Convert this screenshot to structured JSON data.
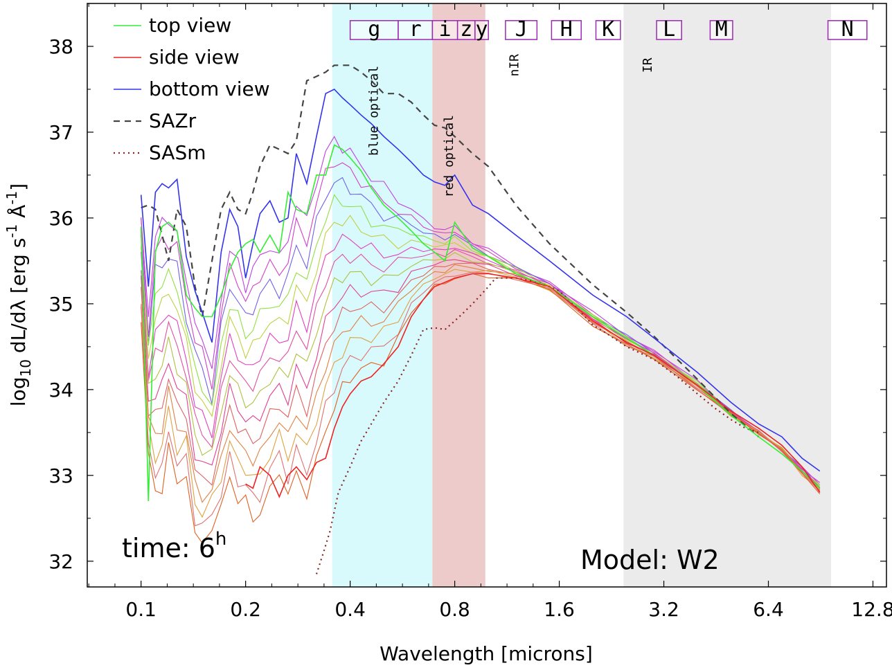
{
  "chart_data": {
    "type": "line",
    "title": "",
    "xlabel": "Wavelength [microns]",
    "ylabel": "log10 dL/dλ [erg s-1 Å-1]",
    "ylabel_parts": {
      "log": "log",
      "sub10": "10",
      "main": " dL/dλ [erg s",
      "exp1": "-1",
      "mid": " Å",
      "exp2": "-1",
      "end": "]"
    },
    "xscale": "log2",
    "xlim": [
      0.07,
      14.0
    ],
    "ylim": [
      31.7,
      38.5
    ],
    "xticks": [
      {
        "value": 0.1,
        "label": "0.1"
      },
      {
        "value": 0.2,
        "label": "0.2"
      },
      {
        "value": 0.4,
        "label": "0.4"
      },
      {
        "value": 0.8,
        "label": "0.8"
      },
      {
        "value": 1.6,
        "label": "1.6"
      },
      {
        "value": 3.2,
        "label": "3.2"
      },
      {
        "value": 6.4,
        "label": "6.4"
      },
      {
        "value": 12.8,
        "label": "12.8"
      }
    ],
    "yticks": [
      {
        "value": 32,
        "label": "32"
      },
      {
        "value": 33,
        "label": "33"
      },
      {
        "value": 34,
        "label": "34"
      },
      {
        "value": 35,
        "label": "35"
      },
      {
        "value": 36,
        "label": "36"
      },
      {
        "value": 37,
        "label": "37"
      },
      {
        "value": 38,
        "label": "38"
      }
    ],
    "legend": {
      "placement": "top-left",
      "entries": [
        {
          "label": "top view",
          "color": "#33ee33",
          "style": "solid"
        },
        {
          "label": "side view",
          "color": "#ee2222",
          "style": "solid"
        },
        {
          "label": "bottom view",
          "color": "#3333ee",
          "style": "solid"
        },
        {
          "label": "SAZr",
          "color": "#444444",
          "style": "dashed"
        },
        {
          "label": "SASm",
          "color": "#882222",
          "style": "dotted"
        }
      ]
    },
    "regions": [
      {
        "name": "blue optical",
        "x0": 0.355,
        "x1": 0.69,
        "color": "#d8fafd"
      },
      {
        "name": "red optical",
        "x0": 0.69,
        "x1": 0.98,
        "color": "#eecbcb"
      },
      {
        "name": "IR",
        "x0": 2.45,
        "x1": 9.7,
        "color": "#ebebeb"
      }
    ],
    "region_labels": [
      {
        "text": "blue optical",
        "x": 0.48,
        "y": 37.25
      },
      {
        "text": "red optical",
        "x": 0.79,
        "y": 36.72
      },
      {
        "text": "nIR",
        "x": 1.22,
        "y": 37.78
      },
      {
        "text": "IR",
        "x": 2.95,
        "y": 37.78
      }
    ],
    "filter_bands": [
      {
        "name": "g",
        "x0": 0.4,
        "x1": 0.55
      },
      {
        "name": "r",
        "x0": 0.55,
        "x1": 0.69
      },
      {
        "name": "i",
        "x0": 0.69,
        "x1": 0.815
      },
      {
        "name": "z",
        "x0": 0.815,
        "x1": 0.915
      },
      {
        "name": "y",
        "x0": 0.915,
        "x1": 1.0
      },
      {
        "name": "J",
        "x0": 1.12,
        "x1": 1.38
      },
      {
        "name": "H",
        "x0": 1.52,
        "x1": 1.85
      },
      {
        "name": "K",
        "x0": 2.04,
        "x1": 2.4
      },
      {
        "name": "L",
        "x0": 3.05,
        "x1": 3.6
      },
      {
        "name": "M",
        "x0": 4.35,
        "x1": 5.05
      },
      {
        "name": "N",
        "x0": 9.5,
        "x1": 12.3
      }
    ],
    "annotations": [
      {
        "text": "time: 6",
        "sup": "h",
        "placement": "bottom-left"
      },
      {
        "text": "Model: W2",
        "placement": "bottom-right"
      }
    ],
    "series": [
      {
        "name": "SAZr",
        "color": "#444444",
        "style": "dashed",
        "x": [
          0.1,
          0.105,
          0.11,
          0.115,
          0.12,
          0.127,
          0.135,
          0.143,
          0.15,
          0.16,
          0.17,
          0.18,
          0.19,
          0.2,
          0.21,
          0.22,
          0.235,
          0.25,
          0.265,
          0.28,
          0.3,
          0.32,
          0.34,
          0.36,
          0.38,
          0.4,
          0.43,
          0.46,
          0.5,
          0.55,
          0.6,
          0.65,
          0.7,
          0.75,
          0.8,
          0.9,
          1.0,
          1.2,
          1.5,
          2.0,
          2.5,
          3.0,
          4.0,
          5.0,
          6.0
        ],
        "y": [
          36.12,
          36.15,
          36.1,
          35.8,
          35.5,
          36.1,
          35.9,
          35.2,
          34.85,
          35.5,
          36.1,
          36.3,
          36.1,
          36.05,
          36.3,
          36.6,
          36.85,
          36.8,
          36.75,
          36.9,
          37.6,
          37.65,
          37.7,
          37.78,
          37.78,
          37.78,
          37.7,
          37.6,
          37.45,
          37.45,
          37.35,
          37.2,
          37.08,
          37.05,
          36.95,
          36.75,
          36.6,
          36.15,
          35.7,
          35.22,
          34.9,
          34.62,
          34.12,
          33.72,
          33.45
        ]
      },
      {
        "name": "SASm",
        "color": "#882222",
        "style": "dotted",
        "x": [
          0.32,
          0.335,
          0.35,
          0.37,
          0.4,
          0.43,
          0.46,
          0.5,
          0.55,
          0.6,
          0.65,
          0.7,
          0.75,
          0.8,
          0.85,
          0.9,
          0.95,
          1.0,
          1.05,
          1.1,
          1.2,
          1.4,
          1.6,
          1.8,
          2.0,
          2.2,
          2.5,
          3.0,
          3.5,
          4.0,
          4.5,
          5.0,
          5.5,
          6.0
        ],
        "y": [
          31.85,
          32.1,
          32.35,
          32.8,
          33.1,
          33.4,
          33.6,
          33.85,
          34.1,
          34.4,
          34.7,
          34.72,
          34.7,
          34.8,
          34.9,
          35.0,
          35.1,
          35.2,
          35.3,
          35.3,
          35.3,
          35.25,
          35.15,
          34.95,
          34.75,
          34.65,
          34.5,
          34.35,
          34.15,
          33.95,
          33.78,
          33.65,
          33.55,
          33.5
        ]
      },
      {
        "name": "bottom view (upper)",
        "color": "#3333ee",
        "style": "solid",
        "x": [
          0.1,
          0.105,
          0.11,
          0.115,
          0.12,
          0.127,
          0.135,
          0.143,
          0.15,
          0.16,
          0.17,
          0.18,
          0.19,
          0.2,
          0.21,
          0.22,
          0.235,
          0.25,
          0.265,
          0.28,
          0.3,
          0.32,
          0.34,
          0.36,
          0.38,
          0.4,
          0.43,
          0.46,
          0.5,
          0.55,
          0.6,
          0.65,
          0.7,
          0.75,
          0.8,
          0.9,
          1.0,
          1.2,
          1.5,
          2.0,
          2.5,
          3.0,
          4.0,
          5.0,
          6.0,
          7.0,
          8.0,
          9.0
        ],
        "y": [
          36.27,
          35.2,
          36.3,
          36.4,
          36.35,
          36.45,
          35.55,
          35.15,
          34.9,
          34.55,
          35.6,
          36.1,
          35.9,
          35.3,
          35.7,
          36.05,
          36.2,
          35.95,
          36.0,
          36.75,
          36.4,
          36.95,
          37.45,
          37.5,
          37.4,
          37.32,
          37.2,
          37.1,
          36.95,
          36.8,
          36.65,
          36.5,
          36.42,
          36.38,
          36.5,
          36.15,
          36.05,
          35.8,
          35.5,
          35.1,
          34.85,
          34.6,
          34.2,
          33.85,
          33.6,
          33.45,
          33.2,
          33.05
        ]
      },
      {
        "name": "top view (upper)",
        "color": "#33ee33",
        "style": "solid",
        "x": [
          0.1,
          0.105,
          0.11,
          0.115,
          0.12,
          0.127,
          0.135,
          0.143,
          0.15,
          0.16,
          0.17,
          0.18,
          0.19,
          0.2,
          0.21,
          0.22,
          0.235,
          0.25,
          0.265,
          0.28,
          0.3,
          0.32,
          0.34,
          0.36,
          0.38,
          0.4,
          0.43,
          0.46,
          0.5,
          0.55,
          0.6,
          0.65,
          0.7,
          0.75,
          0.8,
          0.9,
          1.0,
          1.2,
          1.5,
          2.0,
          2.5,
          3.0,
          4.0,
          5.0,
          6.0,
          7.0,
          8.0,
          9.0
        ],
        "y": [
          35.9,
          32.7,
          35.6,
          35.9,
          35.95,
          35.85,
          35.1,
          34.95,
          34.85,
          34.85,
          35.1,
          35.4,
          35.6,
          35.7,
          35.75,
          35.6,
          35.8,
          35.6,
          36.3,
          36.1,
          36.05,
          36.5,
          36.5,
          36.85,
          36.8,
          36.7,
          36.55,
          36.35,
          36.15,
          36.0,
          35.85,
          35.7,
          35.6,
          35.5,
          35.95,
          35.65,
          35.55,
          35.35,
          35.2,
          34.85,
          34.6,
          34.4,
          34.05,
          33.7,
          33.45,
          33.25,
          33.05,
          32.85
        ]
      },
      {
        "name": "side view (lower)",
        "color": "#ee2222",
        "style": "solid",
        "x": [
          0.2,
          0.21,
          0.22,
          0.235,
          0.25,
          0.265,
          0.28,
          0.3,
          0.32,
          0.34,
          0.36,
          0.38,
          0.4,
          0.43,
          0.46,
          0.5,
          0.55,
          0.6,
          0.65,
          0.7,
          0.75,
          0.8,
          0.9,
          1.0,
          1.2,
          1.5,
          2.0,
          2.5,
          3.0,
          4.0,
          5.0,
          6.0,
          7.0,
          8.0,
          9.0
        ],
        "y": [
          32.9,
          32.85,
          33.1,
          33.0,
          32.75,
          33.0,
          33.1,
          32.95,
          33.15,
          33.2,
          33.55,
          33.8,
          33.95,
          34.1,
          34.15,
          34.3,
          34.5,
          34.85,
          35.05,
          35.2,
          35.25,
          35.3,
          35.35,
          35.35,
          35.3,
          35.2,
          34.8,
          34.55,
          34.4,
          34.05,
          33.75,
          33.55,
          33.35,
          33.1,
          32.8
        ]
      }
    ],
    "fan_series": {
      "count": 14,
      "colors": [
        "#c040e0",
        "#d040c8",
        "#7060e8",
        "#90e040",
        "#c0d040",
        "#e040c0",
        "#e050a0",
        "#b0c040",
        "#e04090",
        "#e06060",
        "#e08040",
        "#e0a040",
        "#e07070",
        "#e06020"
      ],
      "shape_x": [
        0.1,
        0.105,
        0.11,
        0.115,
        0.12,
        0.127,
        0.135,
        0.143,
        0.15,
        0.16,
        0.17,
        0.18,
        0.19,
        0.2,
        0.21,
        0.22,
        0.235,
        0.25,
        0.265,
        0.28,
        0.3,
        0.32,
        0.34,
        0.36,
        0.38,
        0.4,
        0.43,
        0.46,
        0.5,
        0.55,
        0.6,
        0.65,
        0.7,
        0.75,
        0.8,
        0.9,
        1.0,
        1.2,
        1.5,
        2.0,
        2.5,
        3.0,
        4.0,
        5.0,
        6.0,
        7.0,
        8.0,
        9.0
      ],
      "top_y": [
        36.1,
        34.9,
        36.1,
        36.2,
        36.1,
        36.15,
        35.35,
        35.0,
        34.8,
        34.3,
        35.3,
        35.8,
        35.7,
        35.4,
        35.6,
        35.8,
        35.9,
        35.7,
        36.0,
        36.4,
        36.2,
        36.7,
        37.0,
        37.15,
        37.05,
        36.95,
        36.8,
        36.65,
        36.5,
        36.35,
        36.2,
        36.05,
        35.95,
        35.9,
        35.95,
        35.75,
        35.65,
        35.45,
        35.25,
        34.9,
        34.65,
        34.45,
        34.1,
        33.75,
        33.5,
        33.3,
        33.1,
        32.9
      ],
      "bottom_y": [
        34.7,
        33.2,
        32.5,
        32.6,
        33.2,
        32.6,
        32.9,
        32.1,
        32.0,
        32.3,
        32.4,
        32.8,
        32.5,
        32.5,
        32.3,
        32.3,
        32.6,
        32.9,
        32.5,
        32.8,
        32.55,
        32.9,
        33.3,
        33.55,
        33.8,
        33.95,
        34.05,
        34.1,
        34.2,
        34.45,
        34.8,
        35.0,
        35.15,
        35.2,
        35.25,
        35.3,
        35.3,
        35.28,
        35.15,
        34.75,
        34.5,
        34.35,
        34.0,
        33.7,
        33.5,
        33.3,
        33.0,
        32.8
      ]
    }
  }
}
